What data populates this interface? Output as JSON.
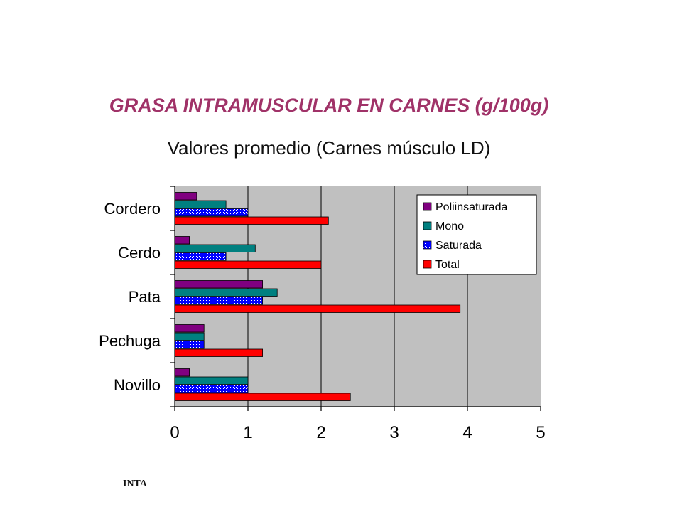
{
  "title": "GRASA INTRAMUSCULAR EN CARNES (g/100g)",
  "subtitle": "Valores promedio (Carnes músculo LD)",
  "footer": "INTA",
  "colors": {
    "title": "#a03268",
    "plot_bg": "#c0c0c0",
    "Poliinsaturada": "#800080",
    "Mono": "#008080",
    "Saturada": "#0000ff",
    "Total": "#ff0000"
  },
  "chart_data": {
    "type": "bar",
    "orientation": "horizontal",
    "categories": [
      "Cordero",
      "Cerdo",
      "Pata",
      "Pechuga",
      "Novillo"
    ],
    "series": [
      {
        "name": "Poliinsaturada",
        "values": [
          0.3,
          0.2,
          1.2,
          0.4,
          0.2
        ]
      },
      {
        "name": "Mono",
        "values": [
          0.7,
          1.1,
          1.4,
          0.4,
          1.0
        ]
      },
      {
        "name": "Saturada",
        "values": [
          1.0,
          0.7,
          1.2,
          0.4,
          1.0
        ]
      },
      {
        "name": "Total",
        "values": [
          2.1,
          2.0,
          3.9,
          1.2,
          2.4
        ]
      }
    ],
    "xlim": [
      0,
      5
    ],
    "xticks": [
      "0",
      "1",
      "2",
      "3",
      "4",
      "5"
    ],
    "grid": "vertical",
    "legend_position": "top-right"
  }
}
